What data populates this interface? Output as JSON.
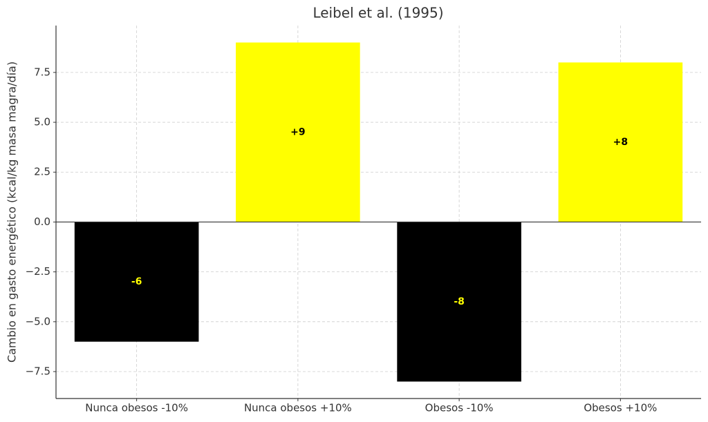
{
  "chart_data": {
    "type": "bar",
    "title": "Leibel et al. (1995)",
    "ylabel": "Cambio en gasto energético (kcal/kg masa magra/día)",
    "categories": [
      "Nunca obesos -10%",
      "Nunca obesos +10%",
      "Obesos -10%",
      "Obesos +10%"
    ],
    "values": [
      -6,
      9,
      -8,
      8
    ],
    "value_labels": [
      "-6",
      "+9",
      "-8",
      "+8"
    ],
    "colors": [
      "#000000",
      "#ffff00",
      "#000000",
      "#ffff00"
    ],
    "label_colors": [
      "#ffff00",
      "#000000",
      "#ffff00",
      "#000000"
    ],
    "ylim": [
      -8.85,
      9.85
    ],
    "yticks": [
      {
        "value": -7.5,
        "label": "−7.5"
      },
      {
        "value": -5,
        "label": "−5.0"
      },
      {
        "value": -2.5,
        "label": "−2.5"
      },
      {
        "value": 0,
        "label": "0.0"
      },
      {
        "value": 2.5,
        "label": "2.5"
      },
      {
        "value": 5,
        "label": "5.0"
      },
      {
        "value": 7.5,
        "label": "7.5"
      }
    ],
    "grid": true
  }
}
